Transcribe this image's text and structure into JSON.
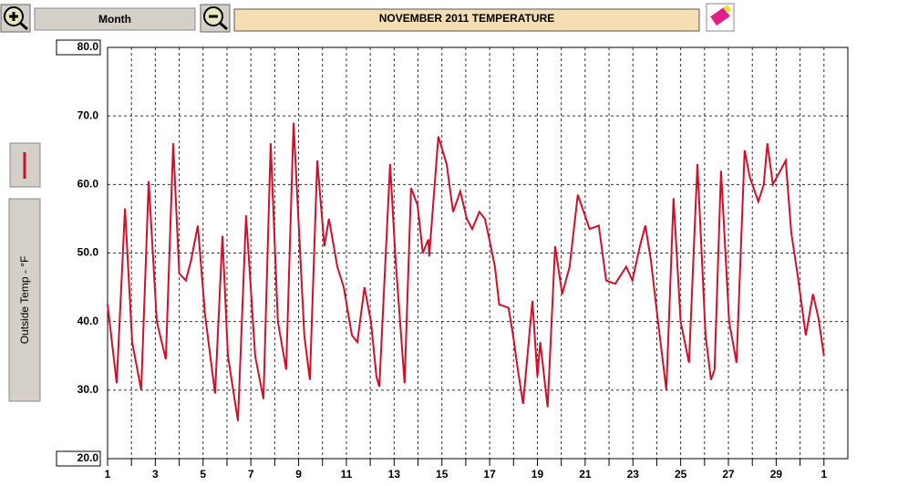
{
  "toolbar": {
    "period": "Month"
  },
  "chart_data": {
    "type": "line",
    "title": "NOVEMBER 2011  TEMPERATURE",
    "y_label": "Outside Temp - °F",
    "xlim": [
      1,
      32
    ],
    "ylim": [
      20,
      80
    ],
    "grid": true,
    "yticks": [
      {
        "value": 20,
        "label": "20.0"
      },
      {
        "value": 30,
        "label": "30.0"
      },
      {
        "value": 40,
        "label": "40.0"
      },
      {
        "value": 50,
        "label": "50.0"
      },
      {
        "value": 60,
        "label": "60.0"
      },
      {
        "value": 70,
        "label": "70.0"
      },
      {
        "value": 80,
        "label": "80.0"
      }
    ],
    "xticks": [
      1,
      {
        "value": 2,
        "label": null
      },
      3,
      {
        "value": 4,
        "label": null
      },
      5,
      {
        "value": 6,
        "label": null
      },
      7,
      {
        "value": 8,
        "label": null
      },
      9,
      {
        "value": 10,
        "label": null
      },
      11,
      {
        "value": 12,
        "label": null
      },
      13,
      {
        "value": 14,
        "label": null
      },
      15,
      {
        "value": 16,
        "label": null
      },
      17,
      {
        "value": 18,
        "label": null
      },
      19,
      {
        "value": 20,
        "label": null
      },
      21,
      {
        "value": 22,
        "label": null
      },
      23,
      {
        "value": 24,
        "label": null
      },
      25,
      {
        "value": 26,
        "label": null
      },
      27,
      {
        "value": 28,
        "label": null
      },
      29,
      {
        "value": 30,
        "label": null
      },
      {
        "value": 31,
        "label": "1"
      }
    ],
    "x": [
      1.0,
      1.38,
      1.73,
      2.03,
      2.41,
      2.72,
      3.06,
      3.44,
      3.75,
      4.0,
      4.28,
      4.5,
      4.78,
      5.08,
      5.5,
      5.81,
      6.04,
      6.46,
      6.8,
      7.18,
      7.53,
      7.83,
      8.13,
      8.48,
      8.79,
      9.24,
      9.47,
      9.78,
      10.08,
      10.27,
      10.62,
      10.89,
      11.23,
      11.46,
      11.76,
      12.03,
      12.26,
      12.38,
      12.83,
      13.06,
      13.44,
      13.71,
      13.98,
      14.2,
      14.43,
      14.47,
      14.85,
      15.2,
      15.47,
      15.77,
      16.04,
      16.27,
      16.57,
      16.8,
      16.99,
      17.22,
      17.4,
      17.79,
      17.98,
      18.18,
      18.4,
      18.79,
      19.0,
      19.12,
      19.43,
      19.74,
      20.04,
      20.35,
      20.69,
      21.19,
      21.57,
      21.88,
      22.26,
      22.72,
      22.98,
      23.29,
      23.52,
      23.75,
      24.05,
      24.4,
      24.7,
      25.0,
      25.35,
      25.7,
      26.04,
      26.27,
      26.42,
      26.69,
      27.03,
      27.34,
      27.68,
      27.9,
      28.25,
      28.48,
      28.63,
      28.86,
      29.17,
      29.4,
      29.63,
      29.89,
      30.24,
      30.54,
      30.77,
      31.0
    ],
    "series": [
      {
        "name": "Outside Temp",
        "color": "#d0102a",
        "values": [
          42.5,
          31,
          56.5,
          37,
          30,
          60.5,
          40,
          34.5,
          66,
          47,
          46,
          49,
          54,
          41,
          29.5,
          52.5,
          35,
          25.5,
          55.5,
          35,
          28.7,
          66,
          40,
          33,
          69,
          38,
          31.5,
          63.5,
          51,
          55,
          48,
          45,
          38,
          37,
          45,
          40,
          32,
          30.5,
          63,
          49,
          31,
          59.5,
          57,
          50,
          52,
          49.5,
          67,
          63,
          56,
          59,
          55,
          53.5,
          56,
          55,
          52,
          48,
          42.5,
          42,
          38,
          33,
          28,
          43,
          32,
          37,
          27.5,
          51,
          44,
          48,
          58.5,
          53.5,
          54,
          46,
          45.5,
          48,
          46,
          51,
          54,
          49,
          40,
          30,
          58,
          40,
          34,
          63,
          38,
          31.5,
          33,
          62,
          40,
          34,
          65,
          61,
          57.5,
          60,
          66,
          60,
          62,
          63.5,
          53,
          47,
          38,
          44,
          40.5,
          35
        ]
      }
    ]
  }
}
